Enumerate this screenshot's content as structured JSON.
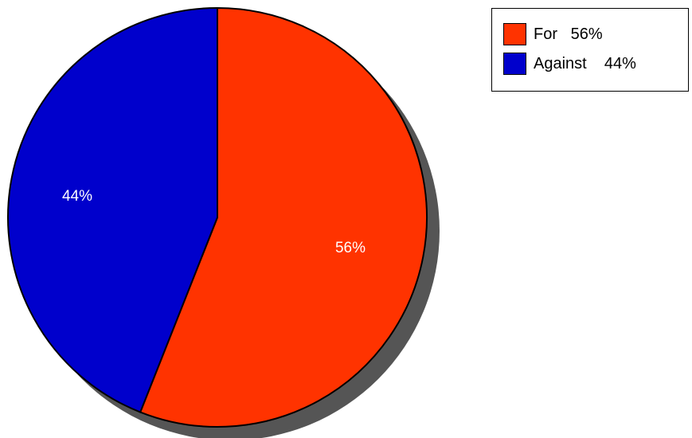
{
  "chart_data": {
    "type": "pie",
    "slices": [
      {
        "label": "For",
        "value": 56,
        "display": "56%",
        "color": "#ff3300"
      },
      {
        "label": "Against",
        "value": 44,
        "display": "44%",
        "color": "#0000cc"
      }
    ],
    "legend": {
      "placement": "top-right",
      "entries": [
        {
          "text": "For   56%",
          "color": "#ff3300"
        },
        {
          "text": "Against    44%",
          "color": "#0000cc"
        }
      ]
    },
    "shadow_color": "#555555"
  }
}
